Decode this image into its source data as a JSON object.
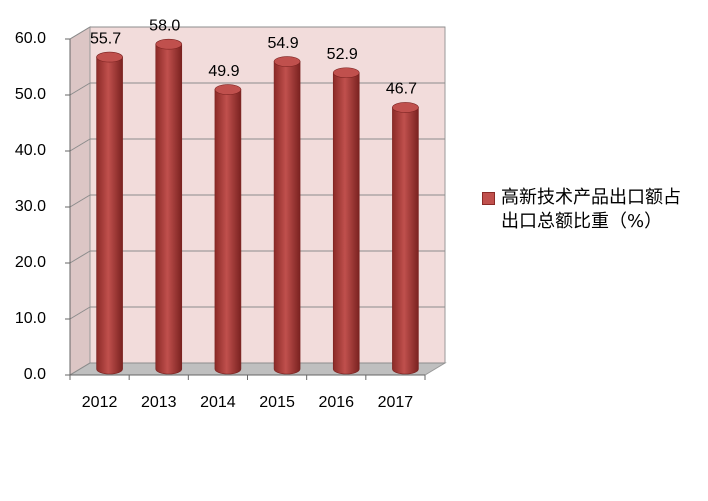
{
  "chart_data": {
    "type": "bar",
    "categories": [
      "2012",
      "2013",
      "2014",
      "2015",
      "2016",
      "2017"
    ],
    "series": [
      {
        "name": "高新技术产品出口额占出口总额比重（%）",
        "color": "#c0504d",
        "values": [
          55.7,
          58.0,
          49.9,
          54.9,
          52.9,
          46.7
        ],
        "value_labels": [
          "55.7",
          "58.0",
          "49.9",
          "54.9",
          "52.9",
          "46.7"
        ]
      }
    ],
    "ylim": [
      0,
      60
    ],
    "yticks": [
      {
        "value": 0,
        "label": "0.0"
      },
      {
        "value": 10,
        "label": "10.0"
      },
      {
        "value": 20,
        "label": "20.0"
      },
      {
        "value": 30,
        "label": "30.0"
      },
      {
        "value": 40,
        "label": "40.0"
      },
      {
        "value": 50,
        "label": "50.0"
      },
      {
        "value": 60,
        "label": "60.0"
      }
    ],
    "grid": true
  }
}
